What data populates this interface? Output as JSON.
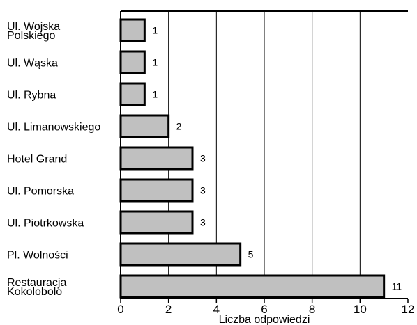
{
  "chart_data": {
    "type": "bar",
    "orientation": "horizontal",
    "categories": [
      [
        "Ul. Wojska",
        "Polskiego"
      ],
      [
        "Ul. Wąska"
      ],
      [
        "Ul. Rybna"
      ],
      [
        "Ul. Limanowskiego"
      ],
      [
        "Hotel Grand"
      ],
      [
        "Ul. Pomorska"
      ],
      [
        "Ul. Piotrkowska"
      ],
      [
        "Pl. Wolności"
      ],
      [
        "Restauracja",
        "Kokolobolo"
      ]
    ],
    "values": [
      1,
      1,
      1,
      2,
      3,
      3,
      3,
      5,
      11
    ],
    "data_labels": [
      "1",
      "1",
      "1",
      "2",
      "3",
      "3",
      "3",
      "5",
      "11"
    ],
    "xlim": [
      0,
      12
    ],
    "xticks": [
      "0",
      "2",
      "4",
      "6",
      "8",
      "10",
      "12"
    ],
    "xtick_values": [
      0,
      2,
      4,
      6,
      8,
      10,
      12
    ],
    "xlabel": "Liczba odpowiedzi",
    "ylabel": "",
    "title": "",
    "grid": "vertical",
    "bar_color": "#c0c0c0",
    "bar_edge_color": "#000000",
    "grid_color": "#000000"
  }
}
